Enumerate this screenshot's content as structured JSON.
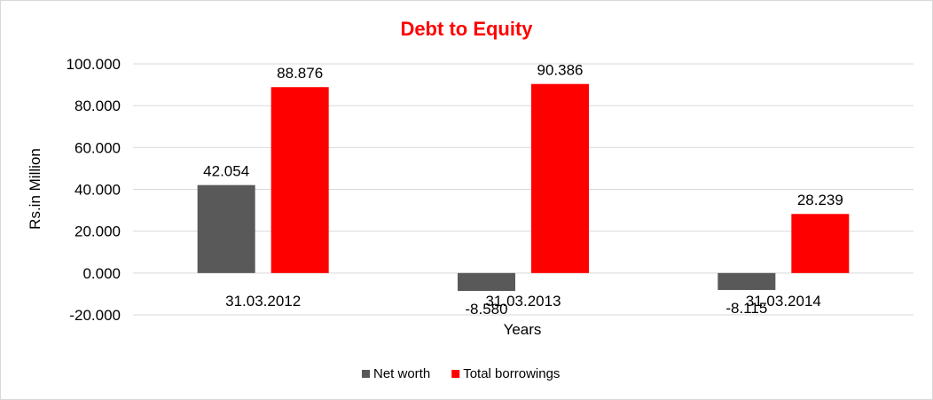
{
  "chart_data": {
    "type": "bar",
    "title": "Debt to Equity",
    "title_color": "#ff0000",
    "xlabel": "Years",
    "ylabel": "Rs.in Million",
    "categories": [
      "31.03.2012",
      "31.03.2013",
      "31.03.2014"
    ],
    "series": [
      {
        "name": "Net worth",
        "color": "#595959",
        "values": [
          42.054,
          -8.58,
          -8.115
        ],
        "labels": [
          "42.054",
          "-8.580",
          "-8.115"
        ]
      },
      {
        "name": "Total borrowings",
        "color": "#ff0000",
        "values": [
          88.876,
          90.386,
          28.239
        ],
        "labels": [
          "88.876",
          "90.386",
          "28.239"
        ]
      }
    ],
    "ylim": [
      -20,
      100
    ],
    "yticks": [
      -20,
      0,
      20,
      40,
      60,
      80,
      100
    ],
    "ytick_labels": [
      "-20.000",
      "0.000",
      "20.000",
      "40.000",
      "60.000",
      "80.000",
      "100.000"
    ],
    "grid": true,
    "legend_position": "bottom"
  }
}
